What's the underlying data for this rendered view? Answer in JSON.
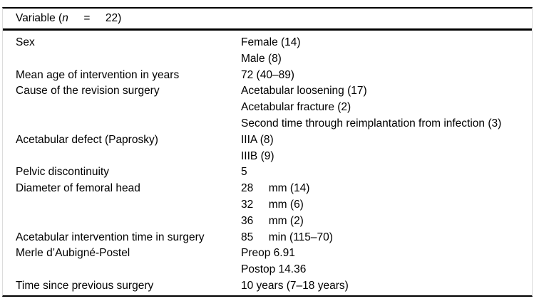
{
  "table": {
    "header": {
      "prefix": "Variable (",
      "n_symbol": "n",
      "suffix": "     =     22)"
    },
    "rows": [
      {
        "label": "Sex",
        "values": [
          "Female (14)",
          "Male (8)"
        ]
      },
      {
        "label": "Mean age of intervention in years",
        "values": [
          "72 (40–89)"
        ]
      },
      {
        "label": "Cause of the revision surgery",
        "values": [
          "Acetabular loosening (17)",
          "Acetabular fracture (2)",
          "Second time through reimplantation from infection (3)"
        ]
      },
      {
        "label": "Acetabular defect (Paprosky)",
        "values": [
          "IIIA (8)",
          "IIIB (9)"
        ]
      },
      {
        "label": "Pelvic discontinuity",
        "values": [
          "5"
        ]
      },
      {
        "label": "Diameter of femoral head",
        "values": [
          "28     mm (14)",
          "32     mm (6)",
          "36     mm (2)"
        ]
      },
      {
        "label": "Acetabular intervention time in surgery",
        "values": [
          "85     min (115–70)"
        ]
      },
      {
        "label": "Merle d’Aubigné-Postel",
        "values": [
          "Preop 6.91",
          "Postop 14.36"
        ]
      },
      {
        "label": "Time since previous surgery",
        "values": [
          "10 years (7–18 years)"
        ]
      }
    ],
    "colors": {
      "rule": "#000000",
      "side_border": "#dcdcdc",
      "text": "#000000",
      "background": "#ffffff"
    }
  }
}
